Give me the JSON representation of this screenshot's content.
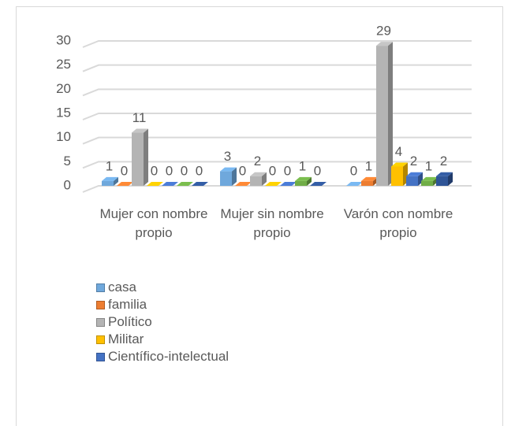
{
  "chart_data": {
    "type": "bar3d",
    "categories": [
      "Mujer con nombre propio",
      "Mujer sin nombre propio",
      "Varón con nombre propio"
    ],
    "series": [
      {
        "name": "casa",
        "color": "#6fa8dc",
        "values": [
          1,
          3,
          0
        ]
      },
      {
        "name": "familia",
        "color": "#ed7d31",
        "values": [
          0,
          0,
          1
        ]
      },
      {
        "name": "Político",
        "color": "#b4b4b4",
        "values": [
          11,
          2,
          29
        ]
      },
      {
        "name": "Militar",
        "color": "#ffc000",
        "values": [
          0,
          0,
          4
        ]
      },
      {
        "name": "Científico-intelectual",
        "color": "#4472c4",
        "values": [
          0,
          0,
          2
        ]
      },
      {
        "color": "#70ad47",
        "values": [
          0,
          1,
          1
        ]
      },
      {
        "color": "#2f5597",
        "values": [
          0,
          0,
          2
        ]
      }
    ],
    "ylim": [
      0,
      30
    ],
    "yticks": [
      0,
      5,
      10,
      15,
      20,
      25,
      30
    ],
    "grid": true
  }
}
